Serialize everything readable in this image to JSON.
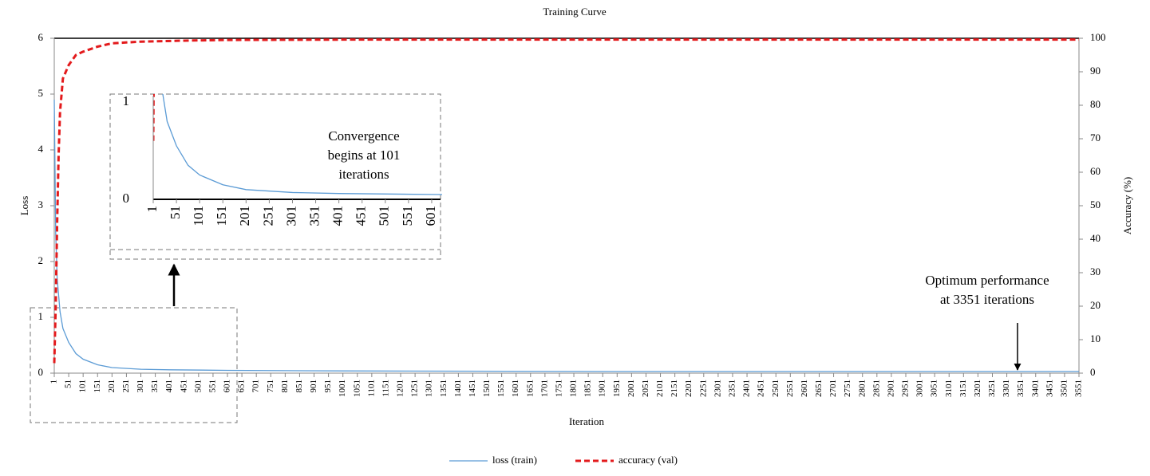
{
  "chart_data": {
    "type": "line",
    "title": "Training Curve",
    "x_label": "Iteration",
    "y_label": "Loss",
    "y2_label": "Accuracy (%)",
    "xlim": [
      1,
      3551
    ],
    "xticks": [
      1,
      51,
      101,
      151,
      201,
      251,
      301,
      351,
      401,
      451,
      501,
      551,
      601,
      651,
      701,
      751,
      801,
      851,
      901,
      951,
      1001,
      1051,
      1101,
      1151,
      1201,
      1251,
      1301,
      1351,
      1401,
      1451,
      1501,
      1551,
      1601,
      1651,
      1701,
      1751,
      1801,
      1851,
      1901,
      1951,
      2001,
      2051,
      2101,
      2151,
      2201,
      2251,
      2301,
      2351,
      2401,
      2451,
      2501,
      2551,
      2601,
      2651,
      2701,
      2751,
      2801,
      2851,
      2901,
      2951,
      3001,
      3051,
      3101,
      3151,
      3201,
      3251,
      3301,
      3351,
      3401,
      3451,
      3501,
      3551
    ],
    "ylim": [
      0,
      6
    ],
    "yticks": [
      0,
      1,
      2,
      3,
      4,
      5,
      6
    ],
    "y2lim": [
      0,
      100
    ],
    "y2ticks": [
      0,
      10,
      20,
      30,
      40,
      50,
      60,
      70,
      80,
      90,
      100
    ],
    "legend": "bottom",
    "series": [
      {
        "name": "loss (train)",
        "color": "#5b9bd5",
        "dash": false,
        "x": [
          1,
          6,
          11,
          21,
          31,
          51,
          76,
          101,
          151,
          201,
          301,
          401,
          601,
          1001,
          2001,
          3551
        ],
        "values": [
          4.9,
          2.5,
          1.7,
          1.1,
          0.8,
          0.55,
          0.35,
          0.25,
          0.15,
          0.1,
          0.07,
          0.06,
          0.05,
          0.04,
          0.03,
          0.03
        ]
      },
      {
        "name": "accuracy (val)",
        "color": "#e31a1c",
        "dash": true,
        "axis": "y2",
        "x": [
          1,
          6,
          11,
          16,
          21,
          31,
          51,
          76,
          101,
          151,
          201,
          301,
          451,
          601,
          1001,
          3551
        ],
        "values": [
          3,
          20,
          45,
          65,
          78,
          88,
          92,
          95,
          96,
          97.5,
          98.5,
          99,
          99.3,
          99.5,
          99.6,
          99.6
        ]
      }
    ],
    "inset": {
      "xlim": [
        1,
        620
      ],
      "xticks": [
        1,
        51,
        101,
        151,
        201,
        251,
        301,
        351,
        401,
        451,
        501,
        551,
        601
      ],
      "ylim": [
        0,
        1
      ],
      "yticks": [
        0,
        1
      ]
    },
    "annotations": [
      {
        "lines": [
          "Convergence",
          "begins at 101",
          "iterations"
        ]
      },
      {
        "lines": [
          "Optimum performance",
          "at 3351 iterations"
        ]
      }
    ]
  }
}
